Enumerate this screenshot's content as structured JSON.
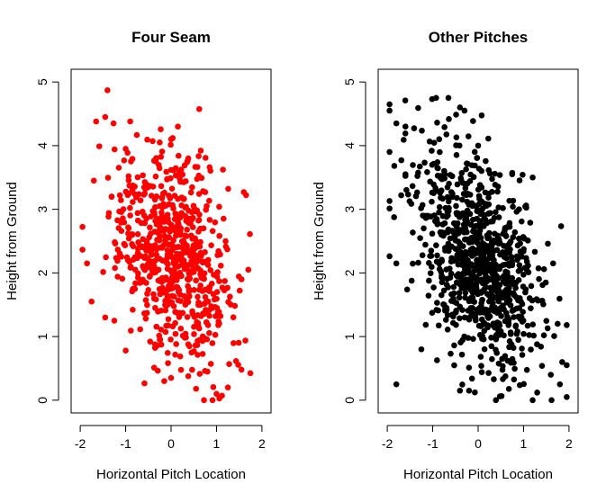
{
  "chart_data": [
    {
      "type": "scatter",
      "title": "Four Seam",
      "xlabel": "Horizontal Pitch Location",
      "ylabel": "Height from Ground",
      "xlim": [
        -2.2,
        2.2
      ],
      "ylim": [
        -0.2,
        5.2
      ],
      "xticks": [
        "-2",
        "-1",
        "0",
        "1",
        "2"
      ],
      "yticks": [
        "0",
        "1",
        "2",
        "3",
        "4",
        "5"
      ],
      "color": "#ff0000",
      "n_points": 700,
      "seed": 17,
      "distribution": {
        "x_mean": 0.0,
        "x_sd": 0.65,
        "y_mean": 2.3,
        "y_sd": 0.85,
        "corr": -0.35
      },
      "points": [
        [
          -1.4,
          4.87
        ],
        [
          -1.45,
          4.45
        ],
        [
          -1.65,
          4.38
        ],
        [
          -0.9,
          4.38
        ],
        [
          0.15,
          4.3
        ],
        [
          -0.25,
          4.05
        ],
        [
          0.0,
          4.1
        ],
        [
          -1.0,
          3.95
        ],
        [
          -1.7,
          3.45
        ],
        [
          -1.85,
          2.15
        ],
        [
          1.6,
          3.27
        ],
        [
          1.7,
          2.05
        ],
        [
          1.55,
          0.48
        ],
        [
          1.25,
          0.2
        ],
        [
          1.0,
          0.1
        ],
        [
          0.55,
          0.18
        ],
        [
          -0.15,
          0.3
        ],
        [
          0.0,
          0.35
        ],
        [
          -1.75,
          1.55
        ],
        [
          -1.45,
          1.3
        ],
        [
          -1.25,
          1.25
        ],
        [
          1.55,
          1.9
        ],
        [
          1.2,
          2.5
        ],
        [
          0.8,
          0.45
        ],
        [
          0.45,
          0.75
        ]
      ]
    },
    {
      "type": "scatter",
      "title": "Other Pitches",
      "xlabel": "Horizontal Pitch Location",
      "ylabel": "Height from Ground",
      "xlim": [
        -2.2,
        2.2
      ],
      "ylim": [
        -0.2,
        5.2
      ],
      "xticks": [
        "-2",
        "-1",
        "0",
        "1",
        "2"
      ],
      "yticks": [
        "0",
        "1",
        "2",
        "3",
        "4",
        "5"
      ],
      "color": "#000000",
      "n_points": 900,
      "seed": 91,
      "distribution": {
        "x_mean": 0.0,
        "x_sd": 0.7,
        "y_mean": 2.2,
        "y_sd": 0.85,
        "corr": -0.4
      },
      "points": [
        [
          -1.95,
          4.65
        ],
        [
          -1.95,
          4.55
        ],
        [
          -1.8,
          4.35
        ],
        [
          -1.6,
          4.3
        ],
        [
          -0.4,
          4.6
        ],
        [
          -0.3,
          4.55
        ],
        [
          0.0,
          4.0
        ],
        [
          0.75,
          3.55
        ],
        [
          0.9,
          3.0
        ],
        [
          -1.8,
          2.15
        ],
        [
          -1.8,
          0.25
        ],
        [
          -1.25,
          0.8
        ],
        [
          1.95,
          0.55
        ],
        [
          1.85,
          0.6
        ],
        [
          1.2,
          0.0
        ],
        [
          1.3,
          0.12
        ],
        [
          1.95,
          0.05
        ],
        [
          1.8,
          0.25
        ],
        [
          1.6,
          0.4
        ],
        [
          -0.4,
          0.15
        ],
        [
          -0.2,
          0.15
        ],
        [
          1.65,
          2.15
        ],
        [
          1.75,
          1.2
        ],
        [
          -1.6,
          3.55
        ],
        [
          1.2,
          3.5
        ]
      ]
    }
  ]
}
